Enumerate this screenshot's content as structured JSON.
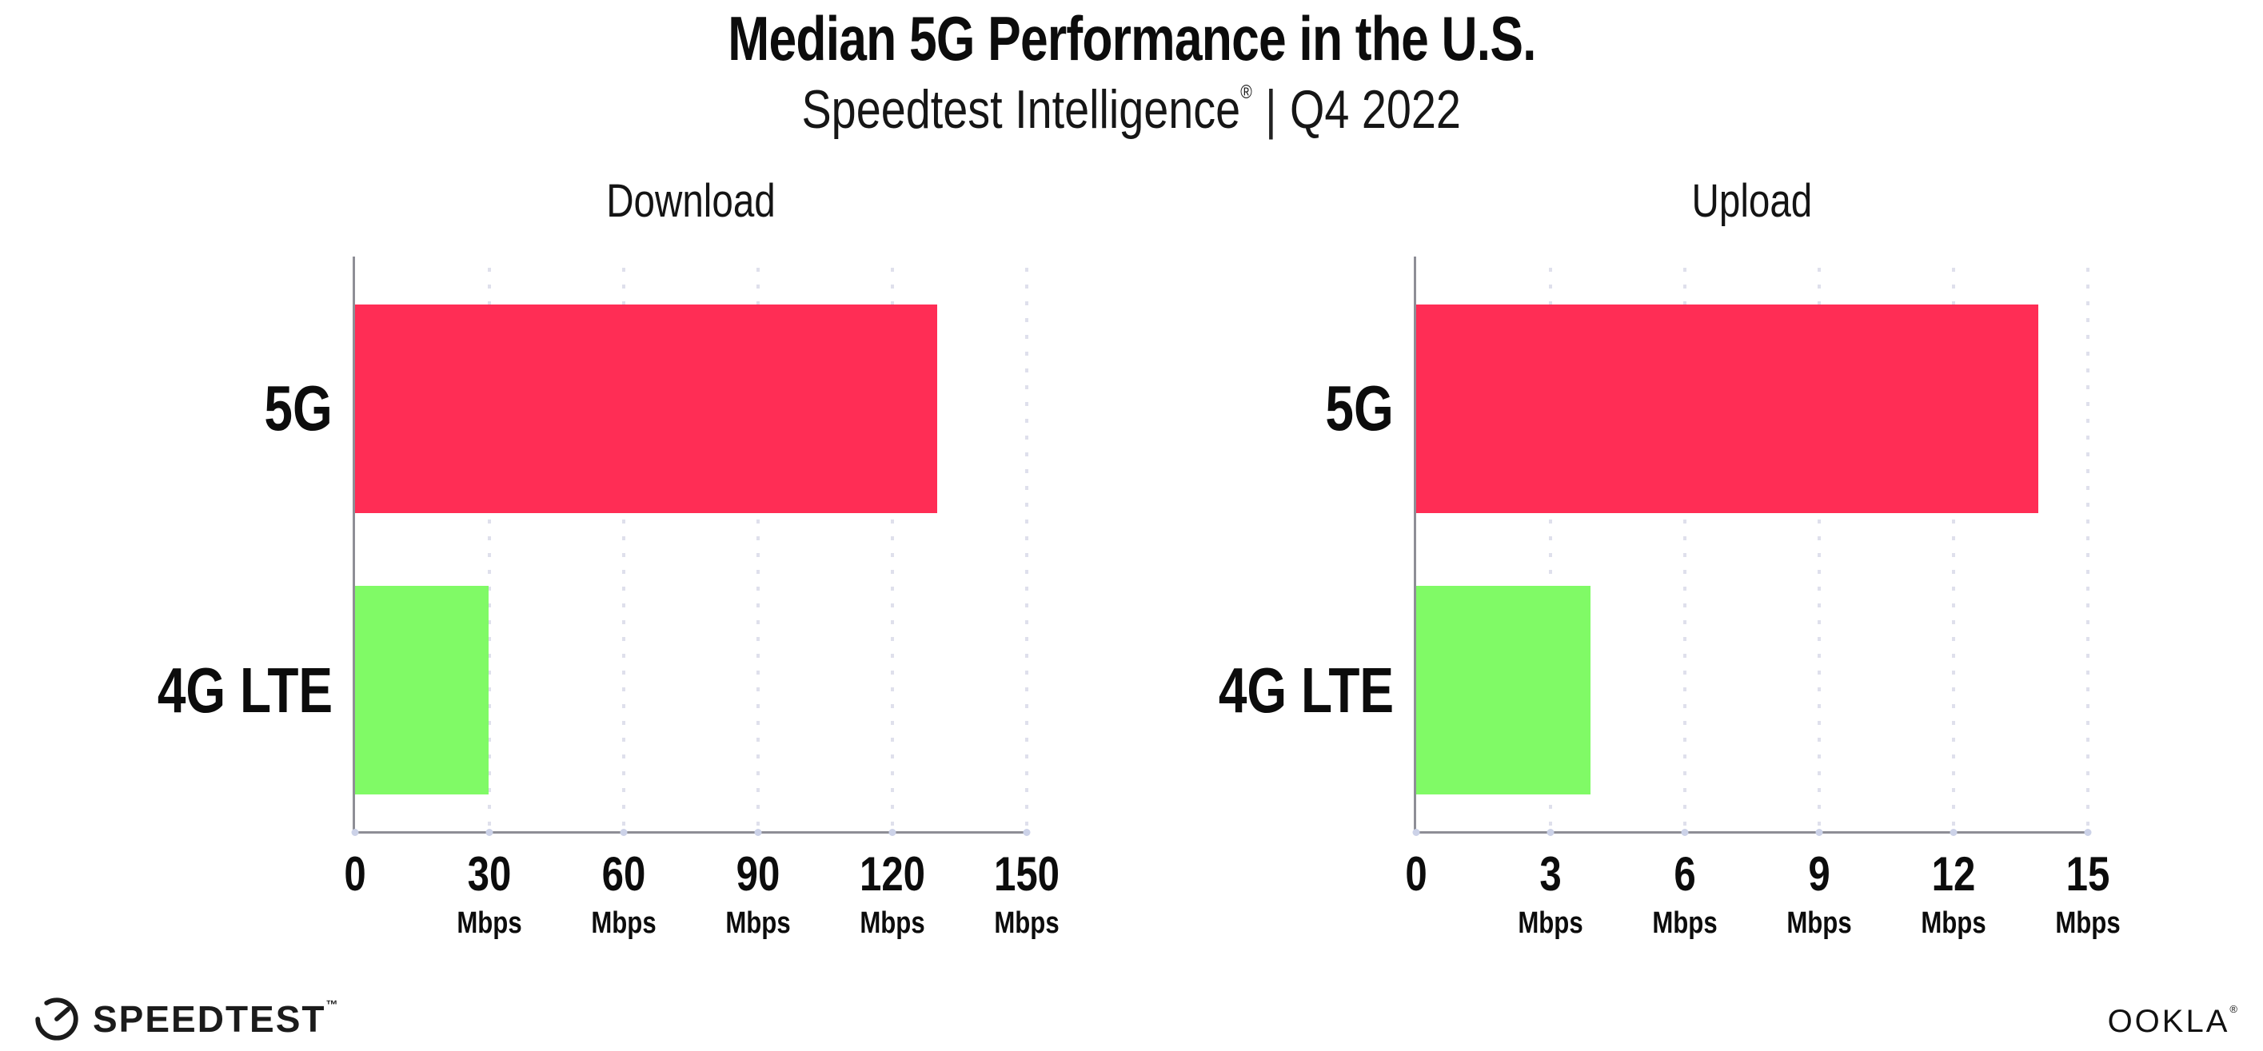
{
  "header": {
    "title": "Median 5G Performance in the U.S.",
    "subtitle_brand": "Speedtest Intelligence",
    "subtitle_trademark": "®",
    "subtitle_divider": "|",
    "subtitle_period": "Q4 2022"
  },
  "chart_data": [
    {
      "type": "bar",
      "orientation": "horizontal",
      "title": "Download",
      "categories": [
        "5G",
        "4G LTE"
      ],
      "values": [
        130,
        29.8
      ],
      "unit": "Mbps",
      "xlim": [
        0,
        150
      ],
      "xticks": [
        0,
        30,
        60,
        90,
        120,
        150
      ],
      "bar_colors": [
        "#ff2d55",
        "#80fa66"
      ],
      "grid": "dotted-vertical",
      "legend": "none"
    },
    {
      "type": "bar",
      "orientation": "horizontal",
      "title": "Upload",
      "categories": [
        "5G",
        "4G LTE"
      ],
      "values": [
        13.9,
        3.9
      ],
      "unit": "Mbps",
      "xlim": [
        0,
        15
      ],
      "xticks": [
        0,
        3,
        6,
        9,
        12,
        15
      ],
      "bar_colors": [
        "#ff2d55",
        "#80fa66"
      ],
      "grid": "dotted-vertical",
      "legend": "none"
    }
  ],
  "footer": {
    "speedtest_label": "SPEEDTEST",
    "speedtest_mark": "™",
    "ookla_label": "OOKLA",
    "ookla_mark": "®"
  },
  "style": {
    "bar_red": "#ff2d55",
    "bar_green": "#80fa66",
    "axis_color": "#8e8e96",
    "gridline_color": "#dfe0ec",
    "text_color": "#0c0c0c"
  }
}
